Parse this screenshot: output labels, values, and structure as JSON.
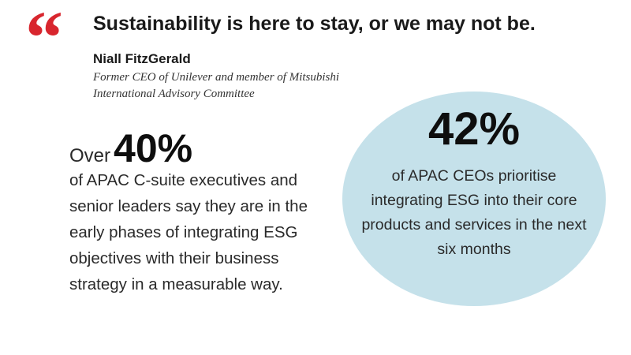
{
  "quote": {
    "mark": "“",
    "text": "Sustainability is here to stay, or we may not be.",
    "mark_color": "#d8262e"
  },
  "author": {
    "name": "Niall FitzGerald",
    "title": "Former CEO of Unilever and member of Mitsubishi International Advisory Committee"
  },
  "stat_left": {
    "prefix": "Over",
    "value": "40%",
    "description": "of APAC C-suite executives and senior leaders say they are in the early phases of integrating ESG objectives with their business strategy in a measurable way."
  },
  "stat_right": {
    "value": "42%",
    "description": "of APAC CEOs prioritise integrating ESG into their core products and services in the next six months",
    "circle_color": "#c5e1ea"
  }
}
